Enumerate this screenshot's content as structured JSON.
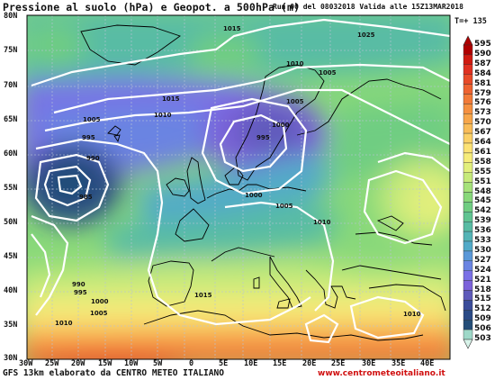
{
  "header": {
    "title": "Pressione al suolo (hPa) e Geopot. a 500hPa (m)",
    "run_info": "Run 00 del 08032018  Valida alle 15Z13MAR2018",
    "forecast_hour": "T=+ 135"
  },
  "legend": {
    "values": [
      "595",
      "590",
      "587",
      "584",
      "581",
      "579",
      "576",
      "573",
      "570",
      "567",
      "564",
      "561",
      "558",
      "555",
      "551",
      "548",
      "545",
      "542",
      "539",
      "536",
      "533",
      "530",
      "527",
      "524",
      "521",
      "518",
      "515",
      "512",
      "509",
      "506",
      "503"
    ],
    "colors": [
      "#b00000",
      "#d01a10",
      "#e03020",
      "#e84a28",
      "#ee6230",
      "#f27a38",
      "#f59040",
      "#f7a64a",
      "#f9bc58",
      "#fbd066",
      "#fce274",
      "#f6ec7a",
      "#e2ef7c",
      "#c6ea7a",
      "#a6e27a",
      "#88d87a",
      "#70cd82",
      "#60c492",
      "#58bca4",
      "#54b4b6",
      "#52aac8",
      "#5a98d8",
      "#6a84e2",
      "#7a70e6",
      "#7c62da",
      "#5e5aba",
      "#3a4c9a",
      "#2a4a86",
      "#244e78",
      "#9ed8c8",
      "#d8f4ea"
    ]
  },
  "axes": {
    "latitudes": [
      "80N",
      "75N",
      "70N",
      "65N",
      "60N",
      "55N",
      "50N",
      "45N",
      "40N",
      "35N",
      "30N"
    ],
    "longitudes": [
      "30W",
      "25W",
      "20W",
      "15W",
      "10W",
      "5W",
      "0",
      "5E",
      "10E",
      "15E",
      "20E",
      "25E",
      "30E",
      "35E",
      "40E"
    ]
  },
  "isobar_labels": [
    "1015",
    "1025",
    "1010",
    "1005",
    "1015",
    "1010",
    "1005",
    "1005",
    "1000",
    "995",
    "990",
    "985",
    "995",
    "1000",
    "1005",
    "1010",
    "990",
    "995",
    "1000",
    "1005",
    "1010",
    "1015",
    "1010"
  ],
  "footer": {
    "left": "GFS 13km elaborato da CENTRO METEO ITALIANO",
    "right": "www.centrometeoitaliano.it"
  }
}
